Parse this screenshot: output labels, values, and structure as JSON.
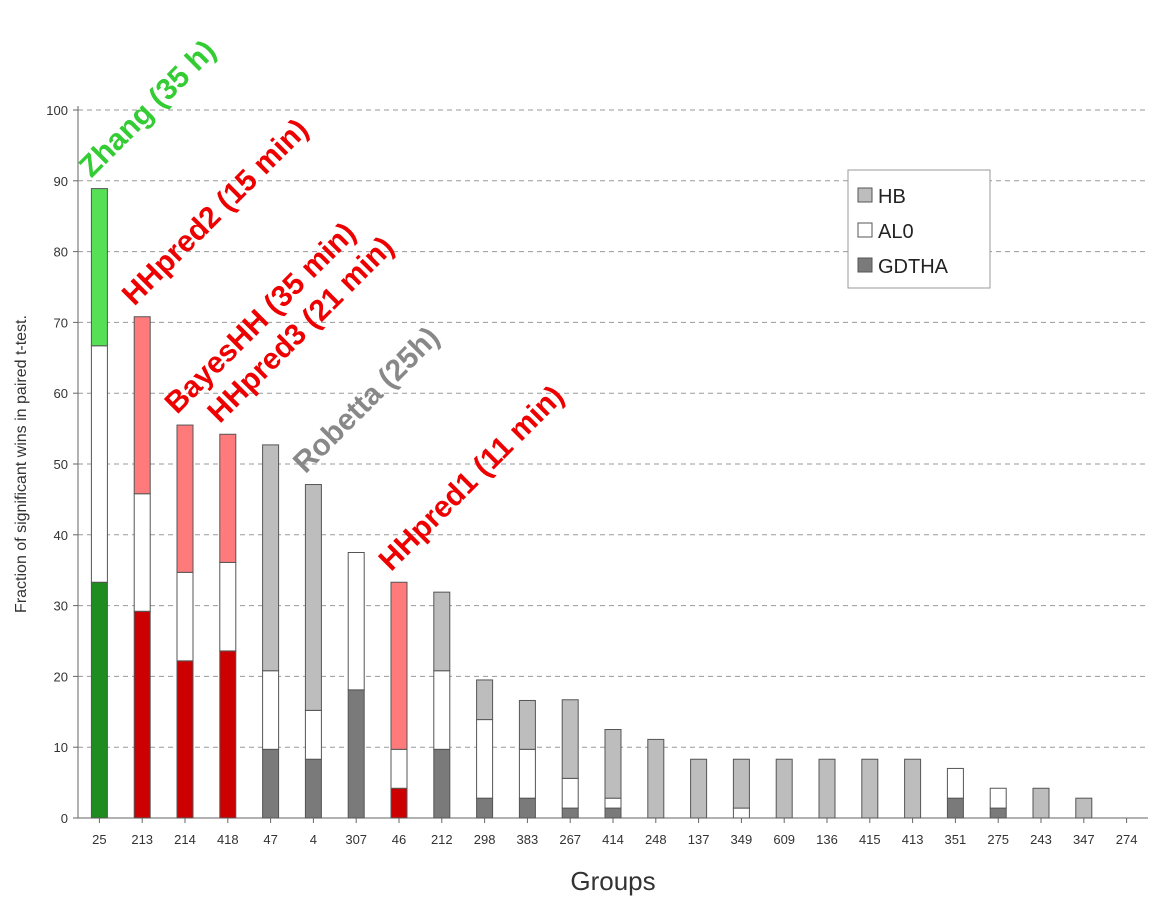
{
  "chart_data": {
    "type": "bar",
    "stacked": true,
    "xlabel": "Groups",
    "ylabel": "Fraction of significant wins in paired t-test.",
    "ylim": [
      0,
      100
    ],
    "yticks": [
      0,
      10,
      20,
      30,
      40,
      50,
      60,
      70,
      80,
      90,
      100
    ],
    "grid": true,
    "legend_position": "top-right",
    "categories": [
      "25",
      "213",
      "214",
      "418",
      "47",
      "4",
      "307",
      "46",
      "212",
      "298",
      "383",
      "267",
      "414",
      "248",
      "137",
      "349",
      "609",
      "136",
      "415",
      "413",
      "351",
      "275",
      "243",
      "347",
      "274"
    ],
    "series": [
      {
        "name": "GDTHA",
        "color": "#7a7a7a",
        "values": [
          33.3,
          29.2,
          22.2,
          23.6,
          9.7,
          8.3,
          18.1,
          4.2,
          9.7,
          2.8,
          2.8,
          1.4,
          1.4,
          0,
          0,
          0,
          0,
          0,
          0,
          0,
          2.8,
          1.4,
          0,
          0,
          0
        ]
      },
      {
        "name": "AL0",
        "color": "#ffffff",
        "values": [
          33.4,
          16.6,
          12.5,
          12.5,
          11.1,
          6.9,
          19.4,
          5.5,
          11.1,
          11.1,
          6.9,
          4.2,
          1.4,
          0,
          0,
          1.4,
          0,
          0,
          0,
          0,
          4.2,
          2.8,
          0,
          0,
          0
        ]
      },
      {
        "name": "HB",
        "color": "#bdbdbd",
        "values": [
          22.2,
          25.0,
          20.8,
          18.1,
          31.9,
          31.9,
          0,
          23.6,
          11.1,
          5.6,
          6.9,
          11.1,
          9.7,
          11.1,
          8.3,
          6.9,
          8.3,
          8.3,
          8.3,
          8.3,
          0,
          0,
          4.2,
          2.8,
          0
        ]
      }
    ],
    "bar_colors": {
      "25": [
        "#1e8c1e",
        "#ffffff",
        "#55e055"
      ],
      "213": [
        "#cc0000",
        "#ffffff",
        "#ff7b7b"
      ],
      "214": [
        "#cc0000",
        "#ffffff",
        "#ff7b7b"
      ],
      "418": [
        "#cc0000",
        "#ffffff",
        "#ff7b7b"
      ],
      "46": [
        "#cc0000",
        "#ffffff",
        "#ff7b7b"
      ]
    },
    "annotations": [
      {
        "text": "Zhang (35 h)",
        "category": "25",
        "color": "#33cc33",
        "rotation": -45
      },
      {
        "text": "HHpred2 (15 min)",
        "category": "213",
        "color": "#ee0000",
        "rotation": -45
      },
      {
        "text": "BayesHH (35 min)",
        "category": "214",
        "color": "#ee0000",
        "rotation": -45
      },
      {
        "text": "HHpred3 (21 min)",
        "category": "418",
        "color": "#ee0000",
        "rotation": -45
      },
      {
        "text": "Robetta (25h)",
        "category": "4",
        "color": "#888888",
        "rotation": -45
      },
      {
        "text": "HHpred1 (11 min)",
        "category": "46",
        "color": "#ee0000",
        "rotation": -45
      }
    ]
  }
}
